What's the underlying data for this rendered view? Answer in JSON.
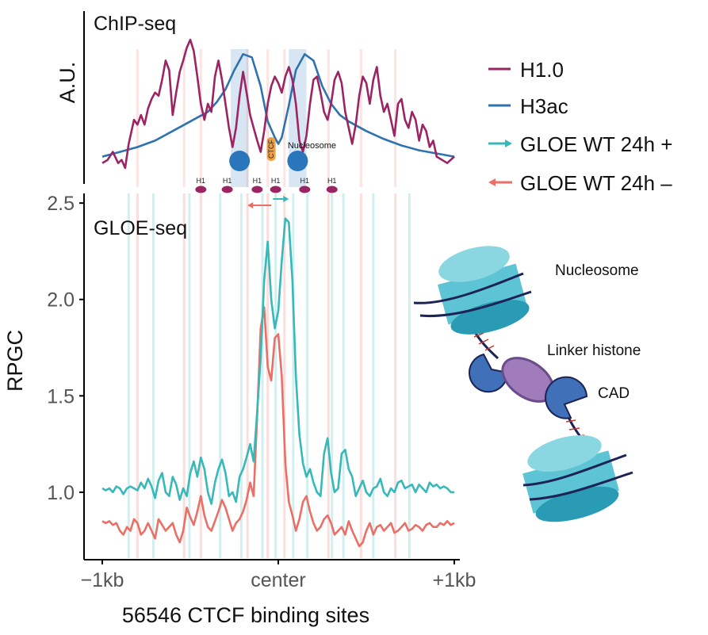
{
  "colors": {
    "h1": "#9b2463",
    "h3ac": "#2f72b0",
    "gloe_plus": "#38b8b8",
    "gloe_minus": "#ea6f66",
    "nucleosome_band": "#c8dcf0",
    "ctcf": "#f0a040",
    "nucleosome_dot": "#2a76bc",
    "teal_light": "#5cc4d4",
    "teal_dark": "#2a9bb5",
    "dna": "#1c2356",
    "linker": "#a07cba",
    "cad": "#3f70b8"
  },
  "chart_data": [
    {
      "type": "line",
      "title": "ChIP-seq",
      "ylabel": "A.U.",
      "xlim": [
        -1000,
        1000
      ],
      "ylim": [
        0.05,
        1.0
      ],
      "series": [
        {
          "name": "H1.0",
          "color_key": "h1",
          "x": [
            -1000,
            -970,
            -940,
            -910,
            -890,
            -870,
            -850,
            -820,
            -800,
            -780,
            -760,
            -740,
            -720,
            -700,
            -680,
            -660,
            -640,
            -620,
            -600,
            -580,
            -560,
            -540,
            -520,
            -500,
            -480,
            -460,
            -440,
            -420,
            -400,
            -380,
            -360,
            -340,
            -320,
            -300,
            -280,
            -260,
            -240,
            -220,
            -200,
            -180,
            -160,
            -140,
            -120,
            -100,
            -80,
            -60,
            -40,
            -20,
            0,
            20,
            40,
            60,
            80,
            100,
            120,
            140,
            160,
            180,
            200,
            220,
            240,
            260,
            280,
            300,
            320,
            340,
            360,
            380,
            400,
            420,
            440,
            460,
            480,
            500,
            520,
            540,
            560,
            580,
            600,
            620,
            640,
            660,
            680,
            700,
            720,
            740,
            760,
            780,
            800,
            820,
            840,
            860,
            880,
            900,
            930,
            960,
            1000
          ],
          "values": [
            0.18,
            0.2,
            0.25,
            0.18,
            0.2,
            0.15,
            0.3,
            0.45,
            0.42,
            0.48,
            0.42,
            0.52,
            0.58,
            0.62,
            0.6,
            0.7,
            0.82,
            0.76,
            0.48,
            0.62,
            0.75,
            0.82,
            0.9,
            0.95,
            0.88,
            0.72,
            0.55,
            0.45,
            0.55,
            0.5,
            0.72,
            0.82,
            0.7,
            0.55,
            0.4,
            0.28,
            0.4,
            0.6,
            0.75,
            0.62,
            0.48,
            0.4,
            0.32,
            0.25,
            0.38,
            0.55,
            0.66,
            0.72,
            0.68,
            0.62,
            0.72,
            0.78,
            0.7,
            0.55,
            0.32,
            0.25,
            0.35,
            0.55,
            0.7,
            0.72,
            0.62,
            0.5,
            0.45,
            0.55,
            0.7,
            0.75,
            0.68,
            0.5,
            0.4,
            0.3,
            0.42,
            0.6,
            0.72,
            0.68,
            0.55,
            0.7,
            0.78,
            0.6,
            0.5,
            0.55,
            0.45,
            0.35,
            0.55,
            0.58,
            0.45,
            0.4,
            0.5,
            0.45,
            0.32,
            0.42,
            0.38,
            0.28,
            0.32,
            0.22,
            0.2,
            0.18,
            0.22
          ]
        },
        {
          "name": "H3ac",
          "color_key": "h3ac",
          "x": [
            -1000,
            -900,
            -800,
            -700,
            -600,
            -500,
            -400,
            -350,
            -300,
            -250,
            -200,
            -150,
            -100,
            -60,
            -20,
            0,
            20,
            60,
            100,
            150,
            200,
            250,
            300,
            350,
            400,
            500,
            600,
            700,
            800,
            900,
            1000
          ],
          "values": [
            0.22,
            0.25,
            0.28,
            0.32,
            0.38,
            0.44,
            0.5,
            0.56,
            0.64,
            0.76,
            0.86,
            0.84,
            0.66,
            0.44,
            0.34,
            0.3,
            0.34,
            0.54,
            0.76,
            0.86,
            0.82,
            0.66,
            0.55,
            0.48,
            0.44,
            0.38,
            0.33,
            0.29,
            0.26,
            0.24,
            0.22
          ]
        }
      ],
      "bands": [
        [
          -270,
          -170
        ],
        [
          60,
          160
        ]
      ],
      "annotations": {
        "nucleosome_left_x": -220,
        "nucleosome_right_x": 110,
        "ctcf_x": -40,
        "ctcf_label": "CTCF",
        "nucleosome_label": "Nucleosome",
        "h1_label": "H1",
        "h1_positions": [
          -440,
          -290,
          -120,
          -15,
          150,
          305
        ],
        "arrow_minus_x": [
          -175,
          -40
        ],
        "arrow_plus_x": [
          -30,
          60
        ]
      }
    },
    {
      "type": "line",
      "title": "GLOE-seq",
      "ylabel": "RPGC",
      "xlabel": "56546 CTCF binding sites",
      "xlim": [
        -1000,
        1000
      ],
      "ylim": [
        0.65,
        2.55
      ],
      "xticks": [
        -1000,
        0,
        1000
      ],
      "xtick_labels": [
        "−1kb",
        "center",
        "+1kb"
      ],
      "yticks": [
        1.0,
        1.5,
        2.0,
        2.5
      ],
      "ytick_labels": [
        "1.0",
        "1.5",
        "2.0",
        "2.5"
      ],
      "series": [
        {
          "name": "GLOE WT 24h +",
          "color_key": "gloe_plus",
          "marker": "arrow-right",
          "x": [
            -1000,
            -980,
            -960,
            -940,
            -920,
            -900,
            -880,
            -860,
            -840,
            -820,
            -800,
            -780,
            -760,
            -740,
            -720,
            -700,
            -680,
            -660,
            -640,
            -620,
            -600,
            -580,
            -560,
            -540,
            -520,
            -500,
            -480,
            -460,
            -440,
            -420,
            -400,
            -380,
            -360,
            -340,
            -320,
            -300,
            -280,
            -260,
            -240,
            -220,
            -200,
            -180,
            -160,
            -140,
            -120,
            -100,
            -80,
            -60,
            -40,
            -20,
            0,
            20,
            40,
            60,
            80,
            100,
            120,
            140,
            160,
            180,
            200,
            220,
            240,
            260,
            280,
            300,
            320,
            340,
            360,
            380,
            400,
            420,
            440,
            460,
            480,
            500,
            520,
            540,
            560,
            580,
            600,
            620,
            640,
            660,
            680,
            700,
            720,
            740,
            760,
            780,
            800,
            820,
            840,
            860,
            880,
            900,
            920,
            940,
            960,
            980,
            1000
          ],
          "values": [
            1.02,
            1.01,
            1.02,
            1.0,
            1.03,
            1.02,
            0.99,
            1.02,
            1.03,
            1.02,
            1.01,
            1.05,
            1.02,
            1.07,
            1.03,
            0.97,
            1.06,
            1.1,
            1.0,
            0.98,
            1.08,
            1.04,
            0.96,
            1.02,
            0.98,
            1.1,
            1.16,
            1.08,
            1.18,
            1.12,
            1.0,
            0.94,
            1.05,
            1.12,
            1.17,
            1.1,
            0.98,
            1.0,
            0.95,
            1.08,
            1.12,
            1.18,
            1.25,
            1.16,
            1.42,
            1.7,
            2.1,
            2.3,
            2.0,
            1.85,
            1.94,
            2.2,
            2.42,
            2.4,
            2.1,
            1.6,
            1.3,
            1.15,
            1.08,
            1.12,
            1.05,
            1.0,
            0.98,
            1.2,
            1.28,
            1.1,
            1.0,
            1.02,
            1.2,
            1.22,
            1.12,
            1.08,
            0.98,
            1.02,
            1.06,
            1.0,
            0.98,
            1.02,
            1.03,
            1.07,
            1.0,
            0.98,
            1.02,
            1.0,
            1.05,
            1.06,
            1.02,
            1.03,
            1.04,
            1.0,
            1.04,
            1.02,
            1.0,
            1.05,
            1.03,
            1.04,
            1.02,
            1.03,
            1.02,
            1.0,
            1.0
          ]
        },
        {
          "name": "GLOE WT 24h –",
          "color_key": "gloe_minus",
          "marker": "arrow-left",
          "x": [
            -1000,
            -980,
            -960,
            -940,
            -920,
            -900,
            -880,
            -860,
            -840,
            -820,
            -800,
            -780,
            -760,
            -740,
            -720,
            -700,
            -680,
            -660,
            -640,
            -620,
            -600,
            -580,
            -560,
            -540,
            -520,
            -500,
            -480,
            -460,
            -440,
            -420,
            -400,
            -380,
            -360,
            -340,
            -320,
            -300,
            -280,
            -260,
            -240,
            -220,
            -200,
            -180,
            -160,
            -140,
            -120,
            -100,
            -80,
            -60,
            -40,
            -20,
            0,
            20,
            40,
            60,
            80,
            100,
            120,
            140,
            160,
            180,
            200,
            220,
            240,
            260,
            280,
            300,
            320,
            340,
            360,
            380,
            400,
            420,
            440,
            460,
            480,
            500,
            520,
            540,
            560,
            580,
            600,
            620,
            640,
            660,
            680,
            700,
            720,
            740,
            760,
            780,
            800,
            820,
            840,
            860,
            880,
            900,
            920,
            940,
            960,
            980,
            1000
          ],
          "values": [
            0.85,
            0.84,
            0.85,
            0.83,
            0.84,
            0.8,
            0.78,
            0.82,
            0.8,
            0.86,
            0.84,
            0.78,
            0.8,
            0.84,
            0.8,
            0.76,
            0.86,
            0.83,
            0.8,
            0.82,
            0.84,
            0.78,
            0.74,
            0.8,
            0.92,
            0.87,
            0.83,
            0.9,
            0.98,
            0.88,
            0.82,
            0.8,
            0.85,
            0.9,
            0.96,
            0.92,
            0.86,
            0.8,
            0.84,
            0.86,
            0.9,
            0.96,
            1.05,
            0.98,
            1.4,
            1.85,
            1.96,
            1.65,
            1.58,
            1.8,
            1.82,
            1.6,
            1.15,
            0.95,
            0.88,
            0.8,
            0.86,
            0.95,
            0.98,
            0.9,
            0.84,
            0.8,
            0.82,
            0.86,
            0.88,
            0.84,
            0.78,
            0.8,
            0.82,
            0.78,
            0.85,
            0.8,
            0.76,
            0.72,
            0.74,
            0.8,
            0.84,
            0.78,
            0.82,
            0.83,
            0.8,
            0.82,
            0.84,
            0.79,
            0.8,
            0.82,
            0.84,
            0.8,
            0.81,
            0.83,
            0.82,
            0.8,
            0.83,
            0.84,
            0.82,
            0.82,
            0.84,
            0.83,
            0.85,
            0.83,
            0.84
          ]
        }
      ],
      "vlines_plus": [
        -850,
        -710,
        -505,
        -330,
        -210,
        -90,
        -15,
        85,
        165,
        305,
        370,
        540,
        745
      ],
      "vlines_minus": [
        -800,
        -535,
        -440,
        -175,
        -60,
        35,
        285,
        470,
        665
      ]
    }
  ],
  "diagram": {
    "nucleosome_label": "Nucleosome",
    "linker_histone_label": "Linker histone",
    "cad_label": "CAD"
  }
}
